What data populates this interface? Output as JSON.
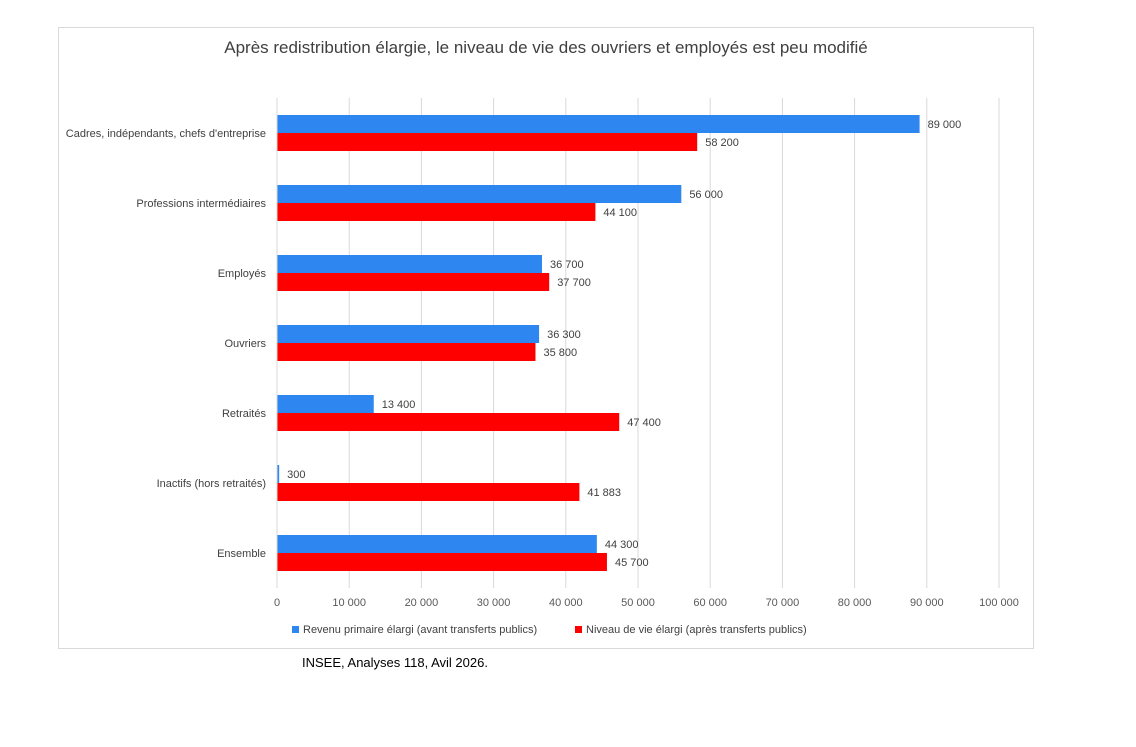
{
  "chart_data": {
    "type": "bar",
    "orientation": "horizontal",
    "title": "Après redistribution élargie, le niveau de vie des ouvriers et employés est peu modifié",
    "categories": [
      "Cadres, indépendants, chefs d'entreprise",
      "Professions intermédiaires",
      "Employés",
      "Ouvriers",
      "Retraités",
      "Inactifs (hors retraités)",
      "Ensemble"
    ],
    "series": [
      {
        "name": "Revenu primaire élargi (avant transferts publics)",
        "color": "#2e86f0",
        "values": [
          89000,
          56000,
          36700,
          36300,
          13400,
          300,
          44300
        ],
        "labels": [
          "89 000",
          "56 000",
          "36 700",
          "36 300",
          "13 400",
          "300",
          "44 300"
        ]
      },
      {
        "name": "Niveau de vie élargi (après transferts publics)",
        "color": "#ff0000",
        "values": [
          58200,
          44100,
          37700,
          35800,
          47400,
          41883,
          45700
        ],
        "labels": [
          "58 200",
          "44 100",
          "37 700",
          "35 800",
          "47 400",
          "41 883",
          "45 700"
        ]
      }
    ],
    "xlim": [
      0,
      100000
    ],
    "xticks": [
      0,
      10000,
      20000,
      30000,
      40000,
      50000,
      60000,
      70000,
      80000,
      90000,
      100000
    ],
    "xtick_labels": [
      "0",
      "10 000",
      "20 000",
      "30 000",
      "40 000",
      "50 000",
      "60 000",
      "70 000",
      "80 000",
      "90 000",
      "100 000"
    ],
    "grid": true,
    "legend_position": "bottom"
  },
  "source": "INSEE, Analyses 118, Avil 2026."
}
